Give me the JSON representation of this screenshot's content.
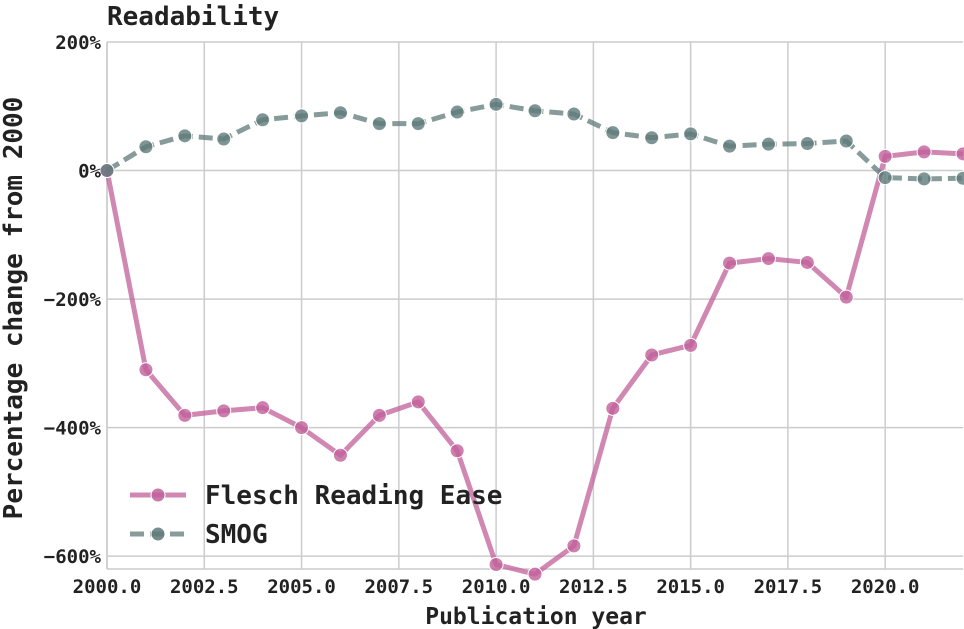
{
  "chart_data": {
    "type": "line",
    "title": "Readability",
    "xlabel": "Publication year",
    "ylabel": "Percentage change from 2000",
    "xlim": [
      2000,
      2022
    ],
    "ylim": [
      -620,
      200
    ],
    "x_ticks": [
      2000.0,
      2002.5,
      2005.0,
      2007.5,
      2010.0,
      2012.5,
      2015.0,
      2017.5,
      2020.0
    ],
    "x_tick_labels": [
      "2000.0",
      "2002.5",
      "2005.0",
      "2007.5",
      "2010.0",
      "2012.5",
      "2015.0",
      "2017.5",
      "2020.0"
    ],
    "y_ticks": [
      200,
      0,
      -200,
      -400,
      -600
    ],
    "y_tick_labels": [
      "200%",
      "0%",
      "−200%",
      "−400%",
      "−600%"
    ],
    "grid": true,
    "legend_position": "lower-left",
    "x": [
      2000,
      2001,
      2002,
      2003,
      2004,
      2005,
      2006,
      2007,
      2008,
      2009,
      2010,
      2011,
      2012,
      2013,
      2014,
      2015,
      2016,
      2017,
      2018,
      2019,
      2020,
      2021,
      2022
    ],
    "series": [
      {
        "name": "Flesch Reading Ease",
        "color": "#c0609a",
        "dash": "solid",
        "values": [
          0,
          -310,
          -381,
          -374,
          -369,
          -400,
          -443,
          -381,
          -360,
          -436,
          -613,
          -628,
          -584,
          -370,
          -287,
          -272,
          -144,
          -137,
          -143,
          -197,
          22,
          29,
          26
        ]
      },
      {
        "name": "SMOG",
        "color": "#5f7a7a",
        "dash": "dashed",
        "values": [
          0,
          37,
          54,
          49,
          79,
          85,
          90,
          73,
          73,
          91,
          103,
          93,
          88,
          59,
          51,
          57,
          38,
          41,
          42,
          46,
          -11,
          -13,
          -12
        ]
      }
    ]
  }
}
